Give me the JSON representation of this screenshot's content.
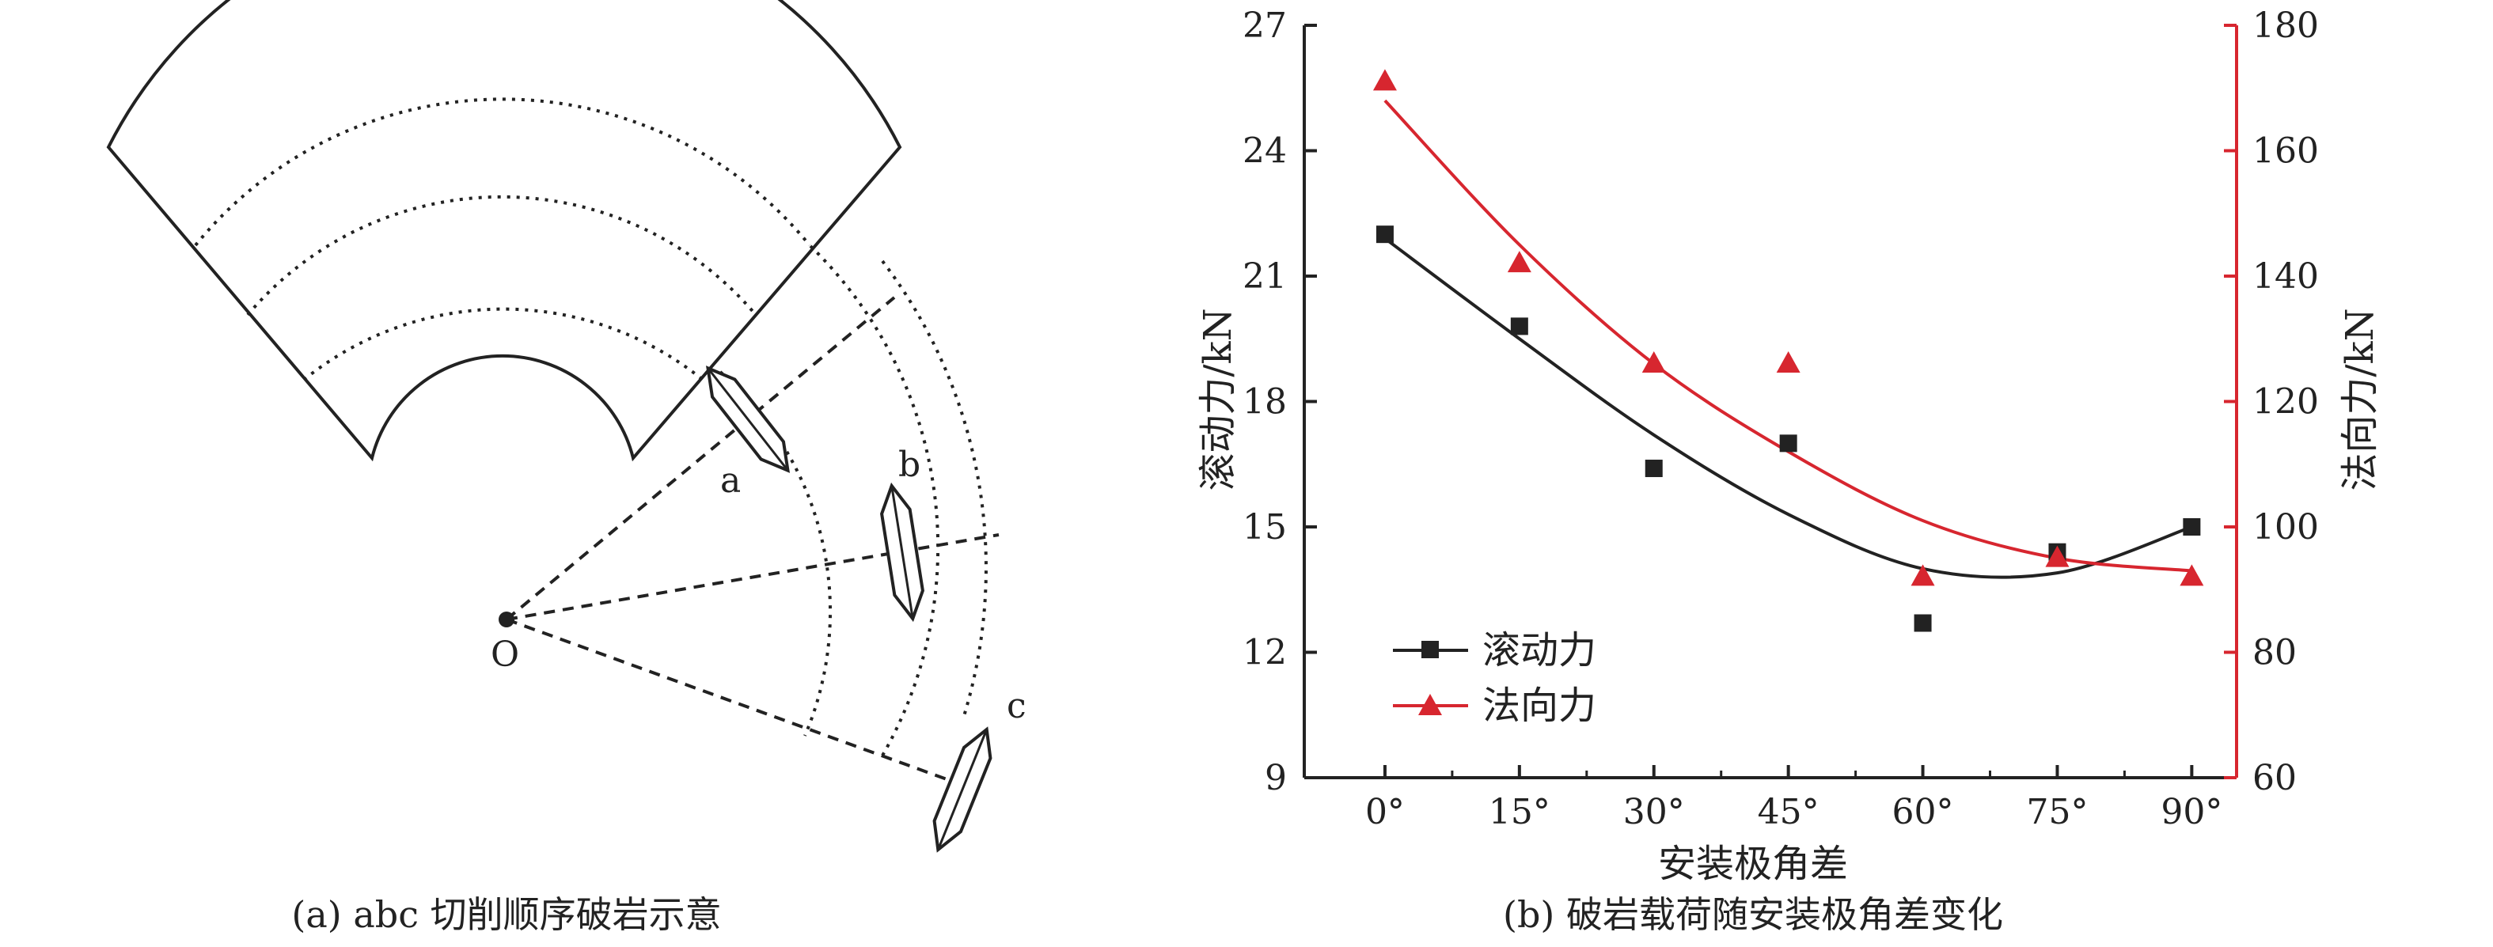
{
  "diagram": {
    "origin_label": "O",
    "cutter_labels": [
      "a",
      "b",
      "c"
    ],
    "caption": "(a) abc 切削顺序破岩示意"
  },
  "chart_data": {
    "type": "scatter",
    "caption": "(b) 破岩载荷随安装极角差变化",
    "xlabel": "安装极角差",
    "ylabel_left": "滚动力/kN",
    "ylabel_right": "法向力/kN",
    "categories": [
      "0°",
      "15°",
      "30°",
      "45°",
      "60°",
      "75°",
      "90°"
    ],
    "x": [
      0,
      15,
      30,
      45,
      60,
      75,
      90
    ],
    "xlim": [
      -9,
      95
    ],
    "ylim_left": [
      9,
      27
    ],
    "ylim_right": [
      60,
      180
    ],
    "yticks_left": [
      9,
      12,
      15,
      18,
      21,
      24,
      27
    ],
    "yticks_right": [
      60,
      80,
      100,
      120,
      140,
      160,
      180
    ],
    "legend_position": "bottom-left",
    "series": [
      {
        "name": "滚动力",
        "axis": "left",
        "marker": "square",
        "color": "#222222",
        "values": [
          22.0,
          19.8,
          16.4,
          17.0,
          12.7,
          14.4,
          15.0
        ],
        "fit": [
          21.9,
          19.5,
          17.2,
          15.3,
          14.0,
          13.9,
          15.0
        ]
      },
      {
        "name": "法向力",
        "axis": "right",
        "marker": "triangle",
        "color": "#d7262f",
        "values": [
          171,
          142,
          126,
          126,
          92,
          95,
          92
        ],
        "fit": [
          168,
          145,
          126,
          112,
          101,
          95,
          93
        ]
      }
    ]
  }
}
